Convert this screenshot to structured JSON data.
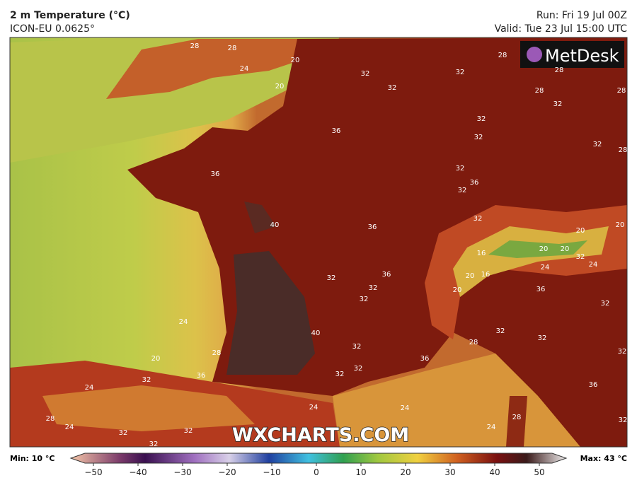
{
  "header": {
    "title": "2 m Temperature (°C)",
    "model": "ICON-EU 0.0625°",
    "run": "Run: Fri 19 Jul 00Z",
    "valid": "Valid: Tue 23 Jul 15:00 UTC"
  },
  "logo": "MetDesk",
  "watermark": "WXCHARTS.COM",
  "contour_labels": [
    28,
    28,
    24,
    20,
    20,
    32,
    32,
    32,
    28,
    28,
    28,
    32,
    28,
    32,
    32,
    36,
    36,
    32,
    32,
    36,
    32,
    28,
    40,
    36,
    32,
    20,
    20,
    16,
    20,
    20,
    32,
    24,
    24,
    20,
    16,
    36,
    32,
    32,
    32,
    20,
    36,
    32,
    24,
    40,
    32,
    32,
    28,
    28,
    32,
    20,
    36,
    32,
    32,
    32,
    36,
    36,
    24,
    32,
    24,
    24,
    24,
    28,
    28,
    24,
    32,
    32,
    32,
    32
  ],
  "colorbar": {
    "min_label": "Min: 10 °C",
    "max_label": "Max: 43 °C",
    "range": [
      -50,
      50
    ],
    "ticks": [
      {
        "value": -50,
        "label": "−50"
      },
      {
        "value": -40,
        "label": "−40"
      },
      {
        "value": -30,
        "label": "−30"
      },
      {
        "value": -20,
        "label": "−20"
      },
      {
        "value": -10,
        "label": "−10"
      },
      0,
      10,
      20,
      30,
      40,
      50
    ]
  }
}
